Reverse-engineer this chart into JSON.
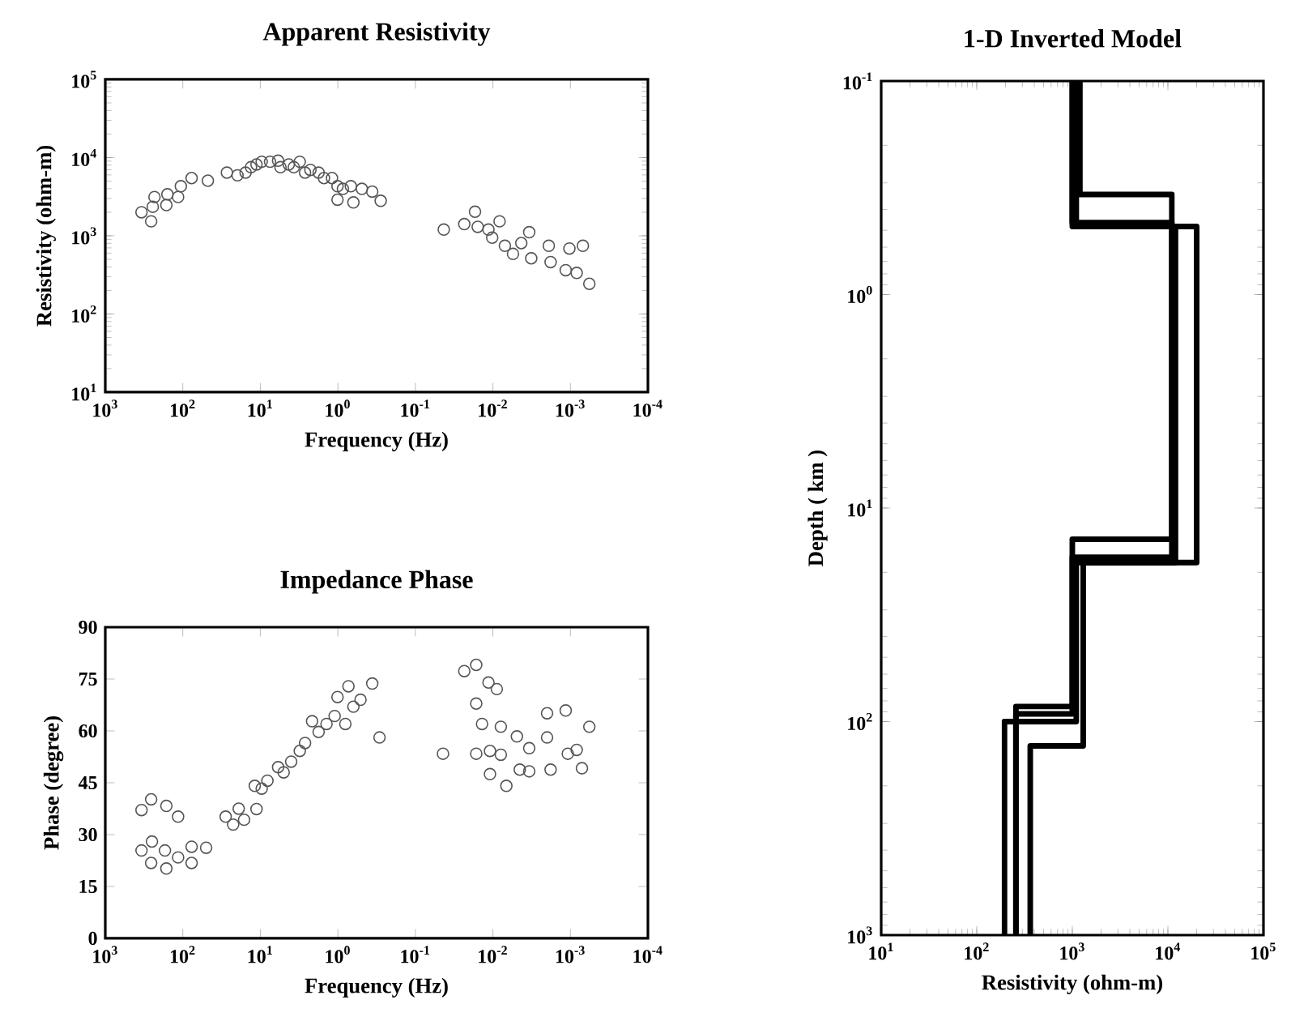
{
  "chart_data": [
    {
      "type": "scatter",
      "title": "Apparent Resistivity",
      "xlabel": "Frequency (Hz)",
      "ylabel": "Resistivity (ohm-m)",
      "log": "xy",
      "marker": "circle",
      "color": "#555555",
      "xlim": [
        1000,
        0.0001
      ],
      "ylim": [
        10,
        100000
      ],
      "xticks": [
        {
          "value": 1000,
          "label": "10$^{3}$"
        },
        {
          "value": 100,
          "label": "10$^{2}$"
        },
        {
          "value": 10,
          "label": "10$^{1}$"
        },
        {
          "value": 1,
          "label": "10$^{0}$"
        },
        {
          "value": 0.1,
          "label": "10$^{-1}$"
        },
        {
          "value": 0.01,
          "label": "10$^{-2}$"
        },
        {
          "value": 0.001,
          "label": "10$^{-3}$"
        },
        {
          "value": 0.0001,
          "label": "10$^{-4}$"
        }
      ],
      "yticks": [
        {
          "value": 10,
          "label": "10$^{1}$"
        },
        {
          "value": 100,
          "label": "10$^{2}$"
        },
        {
          "value": 1000,
          "label": "10$^{3}$"
        },
        {
          "value": 10000,
          "label": "10$^{4}$"
        },
        {
          "value": 100000,
          "label": "10$^{5}$"
        }
      ],
      "x": [
        341,
        244,
        256,
        232,
        163,
        158,
        115,
        106,
        77,
        47.5,
        27,
        19.7,
        15.5,
        13.2,
        11.2,
        9.6,
        7.5,
        5.9,
        5.5,
        4.3,
        3.7,
        3.1,
        2.65,
        2.26,
        1.77,
        1.51,
        1.19,
        1.01,
        0.86,
        0.68,
        0.63,
        0.49,
        0.36,
        0.28,
        1.01,
        0.043,
        0.0234,
        0.017,
        0.0157,
        0.0114,
        0.0102,
        0.0082,
        0.007,
        0.0055,
        0.0043,
        0.0034,
        0.0032,
        0.0019,
        0.0018,
        0.00115,
        0.00103,
        0.00083,
        0.00069,
        0.00057
      ],
      "values": [
        2000,
        2350,
        1530,
        3130,
        2470,
        3390,
        3130,
        4300,
        5470,
        5060,
        6420,
        5930,
        6420,
        7530,
        8160,
        8840,
        8840,
        9120,
        7530,
        8160,
        7530,
        8840,
        6420,
        6950,
        6420,
        5470,
        5470,
        4300,
        3980,
        4300,
        2670,
        3980,
        3670,
        2800,
        2890,
        1200,
        1410,
        2030,
        1300,
        1200,
        946,
        1530,
        745,
        586,
        806,
        1110,
        515,
        745,
        461,
        363,
        687,
        335,
        745,
        243
      ]
    },
    {
      "type": "scatter",
      "title": "Impedance Phase",
      "xlabel": "Frequency (Hz)",
      "ylabel": "Phase (degree)",
      "log": "x",
      "marker": "circle",
      "color": "#555555",
      "xlim": [
        1000,
        0.0001
      ],
      "ylim": [
        0,
        90
      ],
      "xticks": [
        {
          "value": 1000,
          "label": "10$^{3}$"
        },
        {
          "value": 100,
          "label": "10$^{2}$"
        },
        {
          "value": 10,
          "label": "10$^{1}$"
        },
        {
          "value": 1,
          "label": "10$^{0}$"
        },
        {
          "value": 0.1,
          "label": "10$^{-1}$"
        },
        {
          "value": 0.01,
          "label": "10$^{-2}$"
        },
        {
          "value": 0.001,
          "label": "10$^{-3}$"
        },
        {
          "value": 0.0001,
          "label": "10$^{-4}$"
        }
      ],
      "yticks": [
        0,
        15,
        30,
        45,
        60,
        75,
        90
      ],
      "x": [
        341,
        256,
        163,
        115,
        341,
        250,
        256,
        170,
        163,
        115,
        77,
        77,
        50,
        28,
        22.4,
        19,
        16.2,
        11.2,
        11.8,
        9.6,
        8.1,
        5.9,
        5.0,
        4.0,
        3.1,
        2.65,
        2.15,
        1.77,
        1.4,
        1.1,
        1.01,
        0.73,
        0.8,
        0.63,
        0.51,
        0.36,
        0.29,
        0.044,
        0.0234,
        0.0164,
        0.0164,
        0.0164,
        0.0138,
        0.0114,
        0.0109,
        0.0109,
        0.0089,
        0.0079,
        0.0079,
        0.0067,
        0.0049,
        0.0045,
        0.0034,
        0.0034,
        0.002,
        0.002,
        0.0018,
        0.00115,
        0.00108,
        0.00083,
        0.00071,
        0.00057
      ],
      "values": [
        37.1,
        40.2,
        38.3,
        35.2,
        25.4,
        28.0,
        21.8,
        25.4,
        20.2,
        23.4,
        26.5,
        21.8,
        26.2,
        35.2,
        32.9,
        37.5,
        34.3,
        37.4,
        44.1,
        43.3,
        45.6,
        49.5,
        48.0,
        51.1,
        54.2,
        56.5,
        62.8,
        59.7,
        62.0,
        64.3,
        69.8,
        72.9,
        62.0,
        67.0,
        69.0,
        73.7,
        58.1,
        53.4,
        77.3,
        79.1,
        67.9,
        53.4,
        62.0,
        74.0,
        54.2,
        47.5,
        72.1,
        61.2,
        53.1,
        44.1,
        58.4,
        48.8,
        55.0,
        48.3,
        65.1,
        58.1,
        48.8,
        65.9,
        53.4,
        54.5,
        49.2,
        61.2
      ]
    },
    {
      "type": "line",
      "title": "1-D Inverted Model",
      "xlabel": "Resistivity (ohm-m)",
      "ylabel": "Depth ( km )",
      "log": "xy",
      "xlim": [
        10,
        100000
      ],
      "ylim": [
        1000,
        0.1
      ],
      "xticks": [
        {
          "value": 10,
          "label": "10$^{1}$"
        },
        {
          "value": 100,
          "label": "10$^{2}$"
        },
        {
          "value": 1000,
          "label": "10$^{3}$"
        },
        {
          "value": 10000,
          "label": "10$^{4}$"
        },
        {
          "value": 100000,
          "label": "10$^{5}$"
        }
      ],
      "yticks": [
        {
          "value": 0.1,
          "label": "10$^{-1}$"
        },
        {
          "value": 1,
          "label": "10$^{0}$"
        },
        {
          "value": 10,
          "label": "10$^{1}$"
        },
        {
          "value": 100,
          "label": "10$^{2}$"
        },
        {
          "value": 1000,
          "label": "10$^{3}$"
        }
      ],
      "series": [
        {
          "color": "#000000",
          "x": [
            1200,
            1200,
            11000,
            11000,
            1000,
            1000,
            257,
            257
          ],
          "values": [
            0.1,
            0.34,
            0.34,
            14,
            14,
            85,
            85,
            1000
          ]
        },
        {
          "color": "#000000",
          "x": [
            1000,
            1000,
            20000,
            20000,
            1300,
            1300,
            363,
            363
          ],
          "values": [
            0.1,
            0.48,
            0.48,
            18,
            18,
            130,
            130,
            1000
          ]
        },
        {
          "color": "#000000",
          "x": [
            1100,
            1100,
            12000,
            12000,
            1100,
            1100,
            195,
            195
          ],
          "values": [
            0.1,
            0.48,
            0.48,
            18,
            18,
            100,
            100,
            1000
          ]
        },
        {
          "color": "#000000",
          "x": [
            1000,
            1000,
            11000,
            11000,
            1000,
            1000,
            257,
            257
          ],
          "values": [
            0.1,
            0.46,
            0.46,
            17,
            17,
            92,
            92,
            1000
          ]
        }
      ]
    }
  ]
}
